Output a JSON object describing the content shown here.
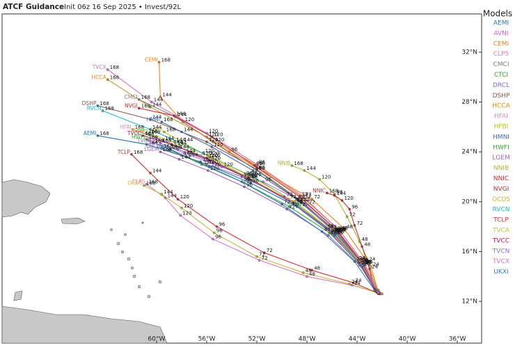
{
  "chart_data": {
    "type": "track-map",
    "title": "ATCF Guidance",
    "subtitle": "Init 06z 16 Sep 2025 • Invest/92L",
    "legend_title": "Models",
    "xlim": [
      -72.33,
      -34.06
    ],
    "ylim": [
      8.65,
      35.07
    ],
    "xticks": [
      {
        "value": -60,
        "label": "60°W"
      },
      {
        "value": -56,
        "label": "56°W"
      },
      {
        "value": -52,
        "label": "52°W"
      },
      {
        "value": -48,
        "label": "48°W"
      },
      {
        "value": -44,
        "label": "44°W"
      },
      {
        "value": -40,
        "label": "40°W"
      },
      {
        "value": -36,
        "label": "36°W"
      }
    ],
    "yticks": [
      {
        "value": 32,
        "label": "32°N"
      },
      {
        "value": 28,
        "label": "28°N"
      },
      {
        "value": 24,
        "label": "24°N"
      },
      {
        "value": 20,
        "label": "20°N"
      },
      {
        "value": 16,
        "label": "16°N"
      },
      {
        "value": 12,
        "label": "12°N"
      }
    ],
    "hours": [
      null,
      24,
      48,
      72,
      96,
      120,
      144,
      168
    ],
    "series": [
      {
        "name": "AEMI",
        "color": "#1f77b4",
        "track": [
          [
            -42.2,
            12.6
          ],
          [
            -43.6,
            14.8
          ],
          [
            -45.8,
            17.3
          ],
          [
            -48.8,
            19.6
          ],
          [
            -52.5,
            21.5
          ],
          [
            -56.5,
            23.2
          ],
          [
            -60.8,
            24.6
          ],
          [
            -64.7,
            25.3
          ]
        ]
      },
      {
        "name": "AVNI",
        "color": "#d65fd6",
        "track": [
          [
            -42.5,
            12.8
          ],
          [
            -43.5,
            15.0
          ],
          [
            -45.5,
            17.6
          ],
          [
            -48.0,
            19.8
          ],
          [
            -51.5,
            21.6
          ],
          [
            -54.8,
            22.8
          ],
          [
            -57.8,
            23.9
          ],
          [
            -59.7,
            24.7
          ]
        ]
      },
      {
        "name": "CEMI",
        "color": "#ff7f0e",
        "track": [
          [
            -42.3,
            12.9
          ],
          [
            -43.2,
            15.2
          ],
          [
            -45.0,
            17.8
          ],
          [
            -47.6,
            20.2
          ],
          [
            -54.2,
            24.0
          ],
          [
            -57.9,
            26.4
          ],
          [
            -59.7,
            28.4
          ],
          [
            -59.8,
            31.2
          ]
        ]
      },
      {
        "name": "CLP5",
        "color": "#e377c2",
        "track": [
          [
            -42.0,
            12.6
          ],
          [
            -44.4,
            13.3
          ],
          [
            -48.0,
            14.0
          ],
          [
            -51.8,
            15.3
          ],
          [
            -55.5,
            17.0
          ],
          [
            -58.1,
            18.9
          ],
          [
            -59.3,
            20.3
          ],
          [
            -60.8,
            21.4
          ]
        ]
      },
      {
        "name": "CMCI",
        "color": "#7f7f7f",
        "track": [
          [
            -42.4,
            12.7
          ],
          [
            -43.5,
            15.0
          ],
          [
            -45.6,
            17.6
          ],
          [
            -48.5,
            20.0
          ],
          [
            -52.0,
            22.5
          ],
          [
            -55.5,
            24.8
          ],
          [
            -58.5,
            26.8
          ],
          [
            -61.4,
            28.2
          ]
        ]
      },
      {
        "name": "CTCI",
        "color": "#2ca02c",
        "track": [
          [
            -42.3,
            12.8
          ],
          [
            -43.7,
            15.0
          ],
          [
            -45.9,
            17.5
          ],
          [
            -49.0,
            19.9
          ],
          [
            -52.6,
            21.9
          ],
          [
            -55.8,
            23.3
          ],
          [
            -58.5,
            24.5
          ],
          [
            -60.6,
            25.4
          ]
        ]
      },
      {
        "name": "DRCL",
        "color": "#9467bd",
        "track": [
          [
            -42.5,
            12.9
          ],
          [
            -44.0,
            15.3
          ],
          [
            -46.5,
            17.9
          ],
          [
            -49.8,
            20.4
          ],
          [
            -53.2,
            22.0
          ],
          [
            -56.0,
            23.0
          ],
          [
            -58.0,
            23.7
          ],
          [
            -59.6,
            24.3
          ]
        ]
      },
      {
        "name": "DSHP",
        "color": "#8c564b",
        "track": [
          [
            -42.3,
            12.6
          ],
          [
            -43.5,
            14.9
          ],
          [
            -45.6,
            17.5
          ],
          [
            -48.4,
            20.0
          ],
          [
            -52.0,
            22.6
          ],
          [
            -56.0,
            24.8
          ],
          [
            -60.5,
            26.6
          ],
          [
            -64.7,
            27.7
          ]
        ]
      },
      {
        "name": "HCCA",
        "color": "#d98c1f",
        "track": [
          [
            -42.2,
            12.7
          ],
          [
            -43.4,
            15.0
          ],
          [
            -45.4,
            17.7
          ],
          [
            -48.3,
            20.3
          ],
          [
            -52.0,
            22.9
          ],
          [
            -56.0,
            25.2
          ],
          [
            -60.5,
            27.6
          ],
          [
            -63.9,
            29.8
          ]
        ]
      },
      {
        "name": "HFAI",
        "color": "#ee82c8",
        "track": [
          [
            -42.6,
            13.0
          ],
          [
            -44.0,
            15.3
          ],
          [
            -46.3,
            17.8
          ],
          [
            -49.5,
            20.2
          ],
          [
            -53.0,
            22.1
          ],
          [
            -56.5,
            23.7
          ],
          [
            -59.5,
            24.9
          ],
          [
            -61.9,
            25.8
          ]
        ]
      },
      {
        "name": "HFBI",
        "color": "#bcbd22",
        "track": [
          [
            -42.4,
            12.9
          ],
          [
            -43.8,
            15.2
          ],
          [
            -46.0,
            17.7
          ],
          [
            -49.2,
            20.0
          ],
          [
            -52.8,
            22.0
          ],
          [
            -55.8,
            23.6
          ],
          [
            -58.0,
            24.8
          ],
          [
            -59.4,
            25.6
          ]
        ]
      },
      {
        "name": "HMNI",
        "color": "#3a6fb5",
        "track": [
          [
            -42.3,
            12.8
          ],
          [
            -43.6,
            15.0
          ],
          [
            -45.8,
            17.6
          ],
          [
            -48.8,
            20.2
          ],
          [
            -52.3,
            22.5
          ],
          [
            -55.6,
            24.4
          ],
          [
            -58.0,
            25.6
          ],
          [
            -59.6,
            26.4
          ]
        ]
      },
      {
        "name": "HWFI",
        "color": "#34a934",
        "track": [
          [
            -42.5,
            12.9
          ],
          [
            -43.9,
            15.1
          ],
          [
            -46.2,
            17.5
          ],
          [
            -49.4,
            19.6
          ],
          [
            -53.0,
            21.5
          ],
          [
            -56.4,
            23.0
          ],
          [
            -59.0,
            24.2
          ],
          [
            -60.8,
            25.0
          ]
        ]
      },
      {
        "name": "LGEM",
        "color": "#a062c8",
        "track": [
          [
            -42.2,
            12.7
          ],
          [
            -43.8,
            14.9
          ],
          [
            -46.3,
            17.3
          ],
          [
            -49.6,
            19.4
          ],
          [
            -53.0,
            21.2
          ],
          [
            -55.9,
            22.5
          ],
          [
            -58.2,
            23.4
          ],
          [
            -59.7,
            24.0
          ]
        ]
      },
      {
        "name": "NNIB",
        "color": "#b0b82a",
        "track": [
          [
            -42.3,
            12.8
          ],
          [
            -42.9,
            14.8
          ],
          [
            -43.8,
            16.8
          ],
          [
            -44.8,
            18.8
          ],
          [
            -45.8,
            20.6
          ],
          [
            -47.0,
            21.8
          ],
          [
            -48.2,
            22.5
          ],
          [
            -49.2,
            22.9
          ]
        ]
      },
      {
        "name": "NNIC",
        "color": "#d62728",
        "track": [
          [
            -42.6,
            13.0
          ],
          [
            -43.0,
            14.6
          ],
          [
            -43.6,
            16.4
          ],
          [
            -44.2,
            18.1
          ],
          [
            -44.6,
            19.4
          ],
          [
            -45.2,
            20.1
          ],
          [
            -45.8,
            20.5
          ],
          [
            -46.4,
            20.7
          ]
        ]
      },
      {
        "name": "NVGI",
        "color": "#c8282a",
        "track": [
          [
            -42.4,
            12.7
          ],
          [
            -43.5,
            15.0
          ],
          [
            -45.6,
            17.7
          ],
          [
            -48.6,
            20.4
          ],
          [
            -52.2,
            22.9
          ],
          [
            -55.6,
            25.2
          ],
          [
            -58.6,
            26.9
          ],
          [
            -61.4,
            27.5
          ]
        ]
      },
      {
        "name": "OCD5",
        "color": "#c5b83a",
        "track": [
          [
            -42.1,
            12.6
          ],
          [
            -44.6,
            13.4
          ],
          [
            -48.3,
            14.3
          ],
          [
            -52.0,
            15.6
          ],
          [
            -55.4,
            17.5
          ],
          [
            -58.0,
            19.5
          ],
          [
            -59.6,
            20.6
          ],
          [
            -61.0,
            21.3
          ]
        ]
      },
      {
        "name": "RVCN",
        "color": "#17becf",
        "track": [
          [
            -42.3,
            12.7
          ],
          [
            -43.6,
            14.9
          ],
          [
            -45.7,
            17.4
          ],
          [
            -48.7,
            19.8
          ],
          [
            -52.3,
            22.0
          ],
          [
            -56.3,
            23.9
          ],
          [
            -60.5,
            25.8
          ],
          [
            -64.3,
            27.3
          ]
        ]
      },
      {
        "name": "TCLP",
        "color": "#e0302e",
        "track": [
          [
            -42.2,
            12.6
          ],
          [
            -44.3,
            13.5
          ],
          [
            -47.6,
            14.5
          ],
          [
            -51.4,
            15.9
          ],
          [
            -55.2,
            18.0
          ],
          [
            -58.3,
            20.2
          ],
          [
            -60.5,
            22.3
          ],
          [
            -62.0,
            23.8
          ]
        ]
      },
      {
        "name": "TVCA",
        "color": "#c2c42a",
        "track": [
          [
            -42.4,
            12.8
          ],
          [
            -43.7,
            15.1
          ],
          [
            -45.9,
            17.6
          ],
          [
            -49.0,
            20.0
          ],
          [
            -52.6,
            22.1
          ],
          [
            -55.9,
            23.7
          ],
          [
            -58.6,
            24.8
          ],
          [
            -60.8,
            25.5
          ]
        ]
      },
      {
        "name": "TVCC",
        "color": "#b81c3c",
        "track": [
          [
            -42.5,
            12.8
          ],
          [
            -43.8,
            15.1
          ],
          [
            -46.0,
            17.6
          ],
          [
            -49.1,
            19.9
          ],
          [
            -52.7,
            21.9
          ],
          [
            -56.0,
            23.5
          ],
          [
            -58.8,
            24.6
          ],
          [
            -61.1,
            25.3
          ]
        ]
      },
      {
        "name": "TVCN",
        "color": "#8a6fd0",
        "track": [
          [
            -42.4,
            12.8
          ],
          [
            -43.7,
            15.0
          ],
          [
            -45.9,
            17.5
          ],
          [
            -49.0,
            19.8
          ],
          [
            -52.6,
            21.8
          ],
          [
            -55.8,
            23.3
          ],
          [
            -58.3,
            24.2
          ],
          [
            -60.3,
            24.7
          ]
        ]
      },
      {
        "name": "TVCX",
        "color": "#d470c8",
        "track": [
          [
            -42.3,
            12.7
          ],
          [
            -43.4,
            15.0
          ],
          [
            -45.4,
            17.7
          ],
          [
            -48.3,
            20.4
          ],
          [
            -52.0,
            23.0
          ],
          [
            -56.0,
            25.5
          ],
          [
            -60.4,
            28.0
          ],
          [
            -63.9,
            30.6
          ]
        ]
      },
      {
        "name": "UKXI",
        "color": "#2c7bbd",
        "track": [
          [
            -42.6,
            12.9
          ],
          [
            -44.2,
            15.2
          ],
          [
            -46.8,
            17.6
          ],
          [
            -50.0,
            19.8
          ],
          [
            -53.2,
            21.6
          ],
          [
            -55.8,
            22.8
          ],
          [
            -57.6,
            23.6
          ],
          [
            -58.9,
            24.2
          ]
        ]
      }
    ]
  }
}
